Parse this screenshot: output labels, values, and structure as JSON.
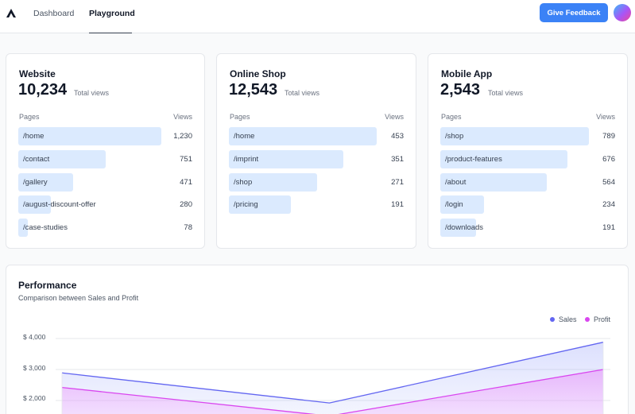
{
  "nav": {
    "tabs": [
      {
        "label": "Dashboard",
        "active": false
      },
      {
        "label": "Playground",
        "active": true
      }
    ],
    "feedback_label": "Give Feedback"
  },
  "cards": [
    {
      "title": "Website",
      "total": "10,234",
      "total_label": "Total views",
      "col_pages": "Pages",
      "col_views": "Views",
      "rows": [
        {
          "page": "/home",
          "views": "1,230",
          "value": 1230
        },
        {
          "page": "/contact",
          "views": "751",
          "value": 751
        },
        {
          "page": "/gallery",
          "views": "471",
          "value": 471
        },
        {
          "page": "/august-discount-offer",
          "views": "280",
          "value": 280
        },
        {
          "page": "/case-studies",
          "views": "78",
          "value": 78
        }
      ]
    },
    {
      "title": "Online Shop",
      "total": "12,543",
      "total_label": "Total views",
      "col_pages": "Pages",
      "col_views": "Views",
      "rows": [
        {
          "page": "/home",
          "views": "453",
          "value": 453
        },
        {
          "page": "/imprint",
          "views": "351",
          "value": 351
        },
        {
          "page": "/shop",
          "views": "271",
          "value": 271
        },
        {
          "page": "/pricing",
          "views": "191",
          "value": 191
        }
      ]
    },
    {
      "title": "Mobile App",
      "total": "2,543",
      "total_label": "Total views",
      "col_pages": "Pages",
      "col_views": "Views",
      "rows": [
        {
          "page": "/shop",
          "views": "789",
          "value": 789
        },
        {
          "page": "/product-features",
          "views": "676",
          "value": 676
        },
        {
          "page": "/about",
          "views": "564",
          "value": 564
        },
        {
          "page": "/login",
          "views": "234",
          "value": 234
        },
        {
          "page": "/downloads",
          "views": "191",
          "value": 191
        }
      ]
    }
  ],
  "performance": {
    "title": "Performance",
    "subtitle": "Comparison between Sales and Profit"
  },
  "chart_data": {
    "type": "area",
    "title": "Performance",
    "subtitle": "Comparison between Sales and Profit",
    "y_tick_labels": [
      "$ 4,000",
      "$ 3,000",
      "$ 2,000"
    ],
    "y_ticks": [
      4000,
      3000,
      2000
    ],
    "ylim": [
      1500,
      4200
    ],
    "x": [
      0,
      1,
      2
    ],
    "series": [
      {
        "name": "Sales",
        "color": "#6366f1",
        "values": [
          2890,
          1920,
          3880
        ]
      },
      {
        "name": "Profit",
        "color": "#d946ef",
        "values": [
          2420,
          1500,
          3000
        ]
      }
    ],
    "legend_position": "top-right",
    "grid": true
  },
  "colors": {
    "accent": "#3b82f6",
    "bar": "#dbeafe",
    "sales": "#6366f1",
    "profit": "#d946ef"
  }
}
